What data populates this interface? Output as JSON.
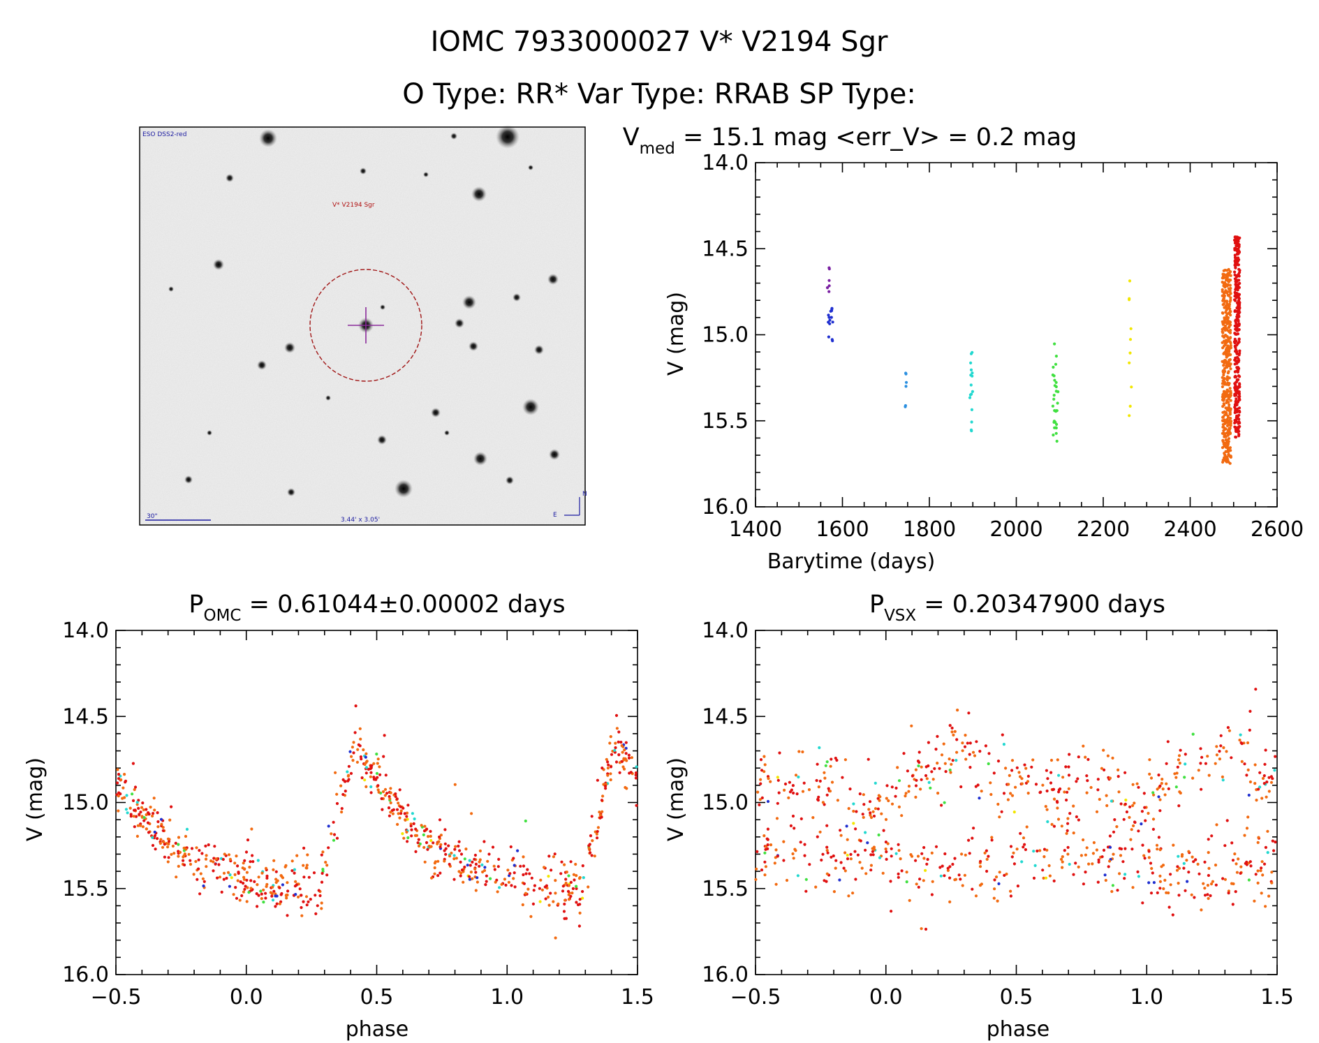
{
  "header": {
    "title_line1": "IOMC 7933000027   V* V2194 Sgr",
    "title_line2": "O Type: RR*  Var Type: RRAB  SP Type:"
  },
  "finder": {
    "survey_label": "ESO DSS2-red",
    "object_label": "V* V2194 Sgr",
    "scale_label": "30\"",
    "fov_label": "3.44' x 3.05'",
    "north_label": "N",
    "east_label": "E"
  },
  "chart_data": [
    {
      "id": "lightcurve",
      "type": "scatter",
      "title_parts": {
        "base": "V",
        "sub": "med",
        "rest": " = 15.1 mag <err_V> = 0.2 mag"
      },
      "xlabel": "Barytime (days)",
      "ylabel": "V (mag)",
      "xlim": [
        1400,
        2600
      ],
      "ylim": [
        14.0,
        16.0
      ],
      "y_inverted": true,
      "xticks": [
        1400,
        1600,
        1800,
        2000,
        2200,
        2400,
        2600
      ],
      "yticks": [
        14.0,
        14.5,
        15.0,
        15.5,
        16.0
      ],
      "series": [
        {
          "name": "season-1",
          "color": "#7a1fa2",
          "x_center": 1568,
          "x_spread": 4,
          "y_range": [
            14.55,
            14.75
          ],
          "count": 6
        },
        {
          "name": "season-2",
          "color": "#1f2fd0",
          "x_center": 1572,
          "x_spread": 6,
          "y_range": [
            14.8,
            15.07
          ],
          "count": 14
        },
        {
          "name": "season-3",
          "color": "#2a8fe0",
          "x_center": 1745,
          "x_spread": 3,
          "y_range": [
            15.2,
            15.45
          ],
          "count": 6
        },
        {
          "name": "season-4",
          "color": "#22d8d0",
          "x_center": 1897,
          "x_spread": 4,
          "y_range": [
            15.1,
            15.58
          ],
          "count": 16
        },
        {
          "name": "season-5",
          "color": "#40e040",
          "x_center": 2090,
          "x_spread": 6,
          "y_range": [
            15.05,
            15.62
          ],
          "count": 30
        },
        {
          "name": "season-6",
          "color": "#f2e600",
          "x_center": 2262,
          "x_spread": 3,
          "y_range": [
            14.68,
            15.57
          ],
          "count": 10
        },
        {
          "name": "season-7",
          "color": "#f26a10",
          "x_center": 2484,
          "x_spread": 10,
          "y_range": [
            14.62,
            15.75
          ],
          "count": 420
        },
        {
          "name": "season-8",
          "color": "#e01010",
          "x_center": 2508,
          "x_spread": 6,
          "y_range": [
            14.43,
            15.6
          ],
          "count": 330
        }
      ]
    },
    {
      "id": "phase-omc",
      "type": "scatter",
      "title_parts": {
        "base": "P",
        "sub": "OMC",
        "rest": " = 0.61044±0.00002 days"
      },
      "xlabel": "phase",
      "ylabel": "V (mag)",
      "xlim": [
        -0.5,
        1.5
      ],
      "ylim": [
        14.0,
        16.0
      ],
      "y_inverted": true,
      "xticks": [
        -0.5,
        0.0,
        0.5,
        1.0,
        1.5
      ],
      "xtick_labels": [
        "−0.5",
        "0.0",
        "0.5",
        "1.0",
        "1.5"
      ],
      "yticks": [
        14.0,
        14.5,
        15.0,
        15.5,
        16.0
      ],
      "light_curve_shape": "rrab-sawtooth",
      "max_mag": 14.65,
      "min_mag": 15.5,
      "rise_phase": [
        0.28,
        0.42
      ],
      "point_colors": [
        "#e01010",
        "#f26a10",
        "#1f2fd0",
        "#22d8d0",
        "#40e040",
        "#f2e600"
      ]
    },
    {
      "id": "phase-vsx",
      "type": "scatter",
      "title_parts": {
        "base": "P",
        "sub": "VSX",
        "rest": " = 0.20347900 days"
      },
      "xlabel": "phase",
      "ylabel": "V (mag)",
      "xlim": [
        -0.5,
        1.5
      ],
      "ylim": [
        14.0,
        16.0
      ],
      "y_inverted": true,
      "xticks": [
        -0.5,
        0.0,
        0.5,
        1.0,
        1.5
      ],
      "xtick_labels": [
        "−0.5",
        "0.0",
        "0.5",
        "1.0",
        "1.5"
      ],
      "yticks": [
        14.0,
        14.5,
        15.0,
        15.5,
        16.0
      ],
      "light_curve_shape": "scattered-bands",
      "band_upper_mag": 14.9,
      "band_lower_mag": 15.35,
      "point_colors": [
        "#e01010",
        "#f26a10",
        "#1f2fd0",
        "#22d8d0",
        "#40e040",
        "#f2e600"
      ]
    }
  ]
}
